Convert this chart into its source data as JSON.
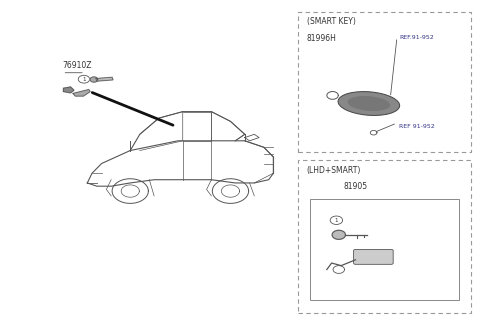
{
  "bg_color": "#ffffff",
  "line_color": "#555555",
  "text_color": "#333333",
  "part_label_76910Z": "76910Z",
  "part_label_81996H": "81996H",
  "part_label_81905": "81905",
  "smart_key_title": "(SMART KEY)",
  "lhd_smart_title": "(LHD+SMART)",
  "ref_91_952_1": "REF.91-952",
  "ref_91_952_2": "REF 91-952"
}
